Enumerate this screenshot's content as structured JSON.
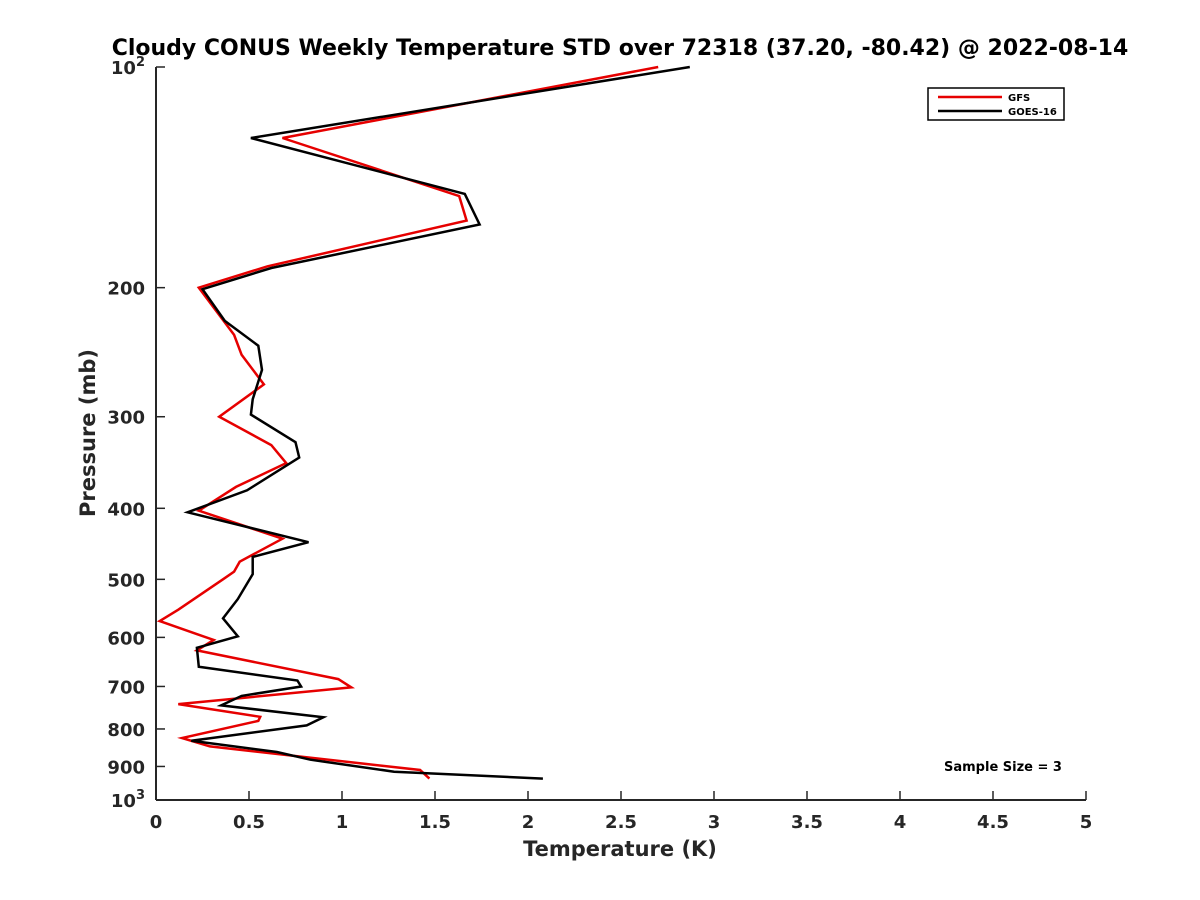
{
  "chart_data": {
    "type": "line",
    "title": "Cloudy CONUS Weekly Temperature STD over 72318 (37.20, -80.42) @ 2022-08-14",
    "xlabel": "Temperature (K)",
    "ylabel": "Pressure (mb)",
    "xlim": [
      0,
      5
    ],
    "ylim": [
      100,
      1000
    ],
    "y_scale": "log",
    "y_reversed": true,
    "x_ticks": [
      {
        "v": 0,
        "label": "0"
      },
      {
        "v": 0.5,
        "label": "0.5"
      },
      {
        "v": 1,
        "label": "1"
      },
      {
        "v": 1.5,
        "label": "1.5"
      },
      {
        "v": 2,
        "label": "2"
      },
      {
        "v": 2.5,
        "label": "2.5"
      },
      {
        "v": 3,
        "label": "3"
      },
      {
        "v": 3.5,
        "label": "3.5"
      },
      {
        "v": 4,
        "label": "4"
      },
      {
        "v": 4.5,
        "label": "4.5"
      },
      {
        "v": 5,
        "label": "5"
      }
    ],
    "y_ticks": [
      {
        "v": 100,
        "base": "10",
        "exp": "2"
      },
      {
        "v": 200,
        "label": "200"
      },
      {
        "v": 300,
        "label": "300"
      },
      {
        "v": 400,
        "label": "400"
      },
      {
        "v": 500,
        "label": "500"
      },
      {
        "v": 600,
        "label": "600"
      },
      {
        "v": 700,
        "label": "700"
      },
      {
        "v": 800,
        "label": "800"
      },
      {
        "v": 900,
        "label": "900"
      },
      {
        "v": 1000,
        "base": "10",
        "exp": "3"
      }
    ],
    "grid": false,
    "legend_position": "top-right",
    "annotation": "Sample Size = 3",
    "series": [
      {
        "name": "GFS",
        "color": "#e60000",
        "points": [
          [
            2.7,
            100
          ],
          [
            0.68,
            125
          ],
          [
            1.63,
            150
          ],
          [
            1.67,
            162
          ],
          [
            0.6,
            187
          ],
          [
            0.23,
            200
          ],
          [
            0.42,
            232
          ],
          [
            0.46,
            247
          ],
          [
            0.58,
            271
          ],
          [
            0.34,
            300
          ],
          [
            0.62,
            328
          ],
          [
            0.7,
            347
          ],
          [
            0.43,
            374
          ],
          [
            0.23,
            403
          ],
          [
            0.68,
            440
          ],
          [
            0.45,
            473
          ],
          [
            0.42,
            488
          ],
          [
            0.36,
            500
          ],
          [
            0.12,
            550
          ],
          [
            0.02,
            570
          ],
          [
            0.31,
            605
          ],
          [
            0.22,
            625
          ],
          [
            0.98,
            684
          ],
          [
            1.05,
            702
          ],
          [
            0.12,
            740
          ],
          [
            0.56,
            770
          ],
          [
            0.55,
            780
          ],
          [
            0.14,
            823
          ],
          [
            0.29,
            845
          ],
          [
            1.42,
            910
          ],
          [
            1.47,
            935
          ]
        ]
      },
      {
        "name": "GOES-16",
        "color": "#000000",
        "points": [
          [
            2.87,
            100
          ],
          [
            0.51,
            125
          ],
          [
            1.66,
            149
          ],
          [
            1.74,
            164
          ],
          [
            0.62,
            188
          ],
          [
            0.25,
            201
          ],
          [
            0.37,
            222
          ],
          [
            0.55,
            240
          ],
          [
            0.57,
            259
          ],
          [
            0.52,
            284
          ],
          [
            0.51,
            298
          ],
          [
            0.75,
            325
          ],
          [
            0.77,
            341
          ],
          [
            0.49,
            378
          ],
          [
            0.17,
            405
          ],
          [
            0.82,
            445
          ],
          [
            0.52,
            466
          ],
          [
            0.52,
            492
          ],
          [
            0.44,
            532
          ],
          [
            0.36,
            565
          ],
          [
            0.44,
            598
          ],
          [
            0.22,
            620
          ],
          [
            0.23,
            658
          ],
          [
            0.76,
            687
          ],
          [
            0.78,
            700
          ],
          [
            0.46,
            721
          ],
          [
            0.35,
            743
          ],
          [
            0.9,
            771
          ],
          [
            0.81,
            791
          ],
          [
            0.19,
            830
          ],
          [
            0.65,
            860
          ],
          [
            0.83,
            881
          ],
          [
            1.28,
            915
          ],
          [
            2.08,
            935
          ]
        ]
      }
    ]
  }
}
